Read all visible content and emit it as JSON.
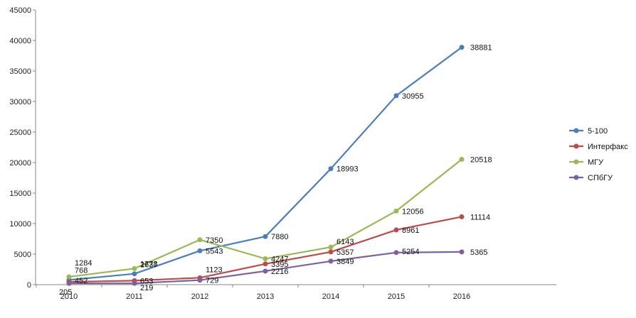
{
  "chart_data": {
    "type": "line",
    "title": "",
    "xlabel": "",
    "ylabel": "",
    "categories": [
      "2010",
      "2011",
      "2012",
      "2013",
      "2014",
      "2015",
      "2016"
    ],
    "ylim": [
      0,
      45000
    ],
    "yticks": [
      0,
      5000,
      10000,
      15000,
      20000,
      25000,
      30000,
      35000,
      40000,
      45000
    ],
    "grid": false,
    "legend_position": "right",
    "series": [
      {
        "name": "5-100",
        "color": "#4a7ebb",
        "values": [
          768,
          1778,
          5543,
          7880,
          18993,
          30955,
          38881
        ]
      },
      {
        "name": "Интерфакс",
        "color": "#be4b48",
        "values": [
          452,
          653,
          1123,
          3395,
          5357,
          8961,
          11114
        ]
      },
      {
        "name": "МГУ",
        "color": "#98b954",
        "values": [
          1284,
          2637,
          7350,
          4247,
          6143,
          12056,
          20518
        ]
      },
      {
        "name": "СПбГУ",
        "color": "#7d60a0",
        "values": [
          205,
          219,
          729,
          2216,
          3849,
          5254,
          5365
        ]
      }
    ]
  }
}
